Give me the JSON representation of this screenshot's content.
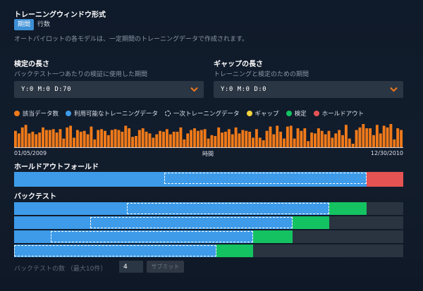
{
  "training_window": {
    "title": "トレーニングウィンドウ形式",
    "tabs": [
      {
        "label": "期間",
        "active": true
      },
      {
        "label": "行数",
        "active": false
      }
    ],
    "description": "オートパイロットの各モデルは、一定期間のトレーニングデータで作成されます。"
  },
  "validation": {
    "title": "検定の長さ",
    "subtitle": "バックテスト一つあたりの検証に使用した期間",
    "value": "Y:0  M:0  D:70"
  },
  "gap": {
    "title": "ギャップの長さ",
    "subtitle": "トレーニングと検定のための期間",
    "value": "Y:0  M:0  D:0"
  },
  "legend": [
    {
      "label": "該当データ数",
      "color": "#f07a1a",
      "dashed": false
    },
    {
      "label": "利用可能なトレーニングデータ",
      "color": "#3d9be9",
      "dashed": false
    },
    {
      "label": "一次トレーニングデータ",
      "color": "transparent",
      "dashed": true
    },
    {
      "label": "ギャップ",
      "color": "#f5d43c",
      "dashed": false
    },
    {
      "label": "検定",
      "color": "#14c261",
      "dashed": false
    },
    {
      "label": "ホールドアウト",
      "color": "#e55353",
      "dashed": false
    }
  ],
  "chart_data": {
    "type": "bar",
    "x_start_label": "01/05/2009",
    "x_end_label": "12/30/2010",
    "xlabel": "時間",
    "color": "#f07a1a",
    "values": [
      20,
      17,
      24,
      27,
      17,
      19,
      16,
      18,
      24,
      21,
      21,
      22,
      18,
      22,
      11,
      24,
      26,
      12,
      21,
      19,
      20,
      16,
      25,
      10,
      21,
      22,
      20,
      15,
      21,
      22,
      21,
      19,
      26,
      23,
      13,
      14,
      21,
      23,
      19,
      17,
      12,
      16,
      20,
      19,
      22,
      16,
      19,
      19,
      24,
      10,
      17,
      21,
      23,
      20,
      21,
      22,
      11,
      15,
      14,
      24,
      18,
      19,
      22,
      16,
      24,
      17,
      21,
      20,
      19,
      12,
      22,
      12,
      9,
      20,
      25,
      16,
      26,
      19,
      11,
      25,
      26,
      11,
      23,
      20,
      23,
      8,
      18,
      17,
      23,
      20,
      16,
      20,
      12,
      17,
      21,
      15,
      27,
      11,
      5,
      21,
      24,
      28,
      23,
      23,
      15,
      27,
      17,
      26,
      24,
      28,
      10,
      23,
      21
    ]
  },
  "holdout": {
    "title": "ホールドアウトフォールド",
    "training_fraction": 0.385,
    "primary_start": 0.385,
    "primary_end": 0.905,
    "holdout_fraction": 0.095
  },
  "backtests": {
    "title": "バックテスト",
    "rows": [
      {
        "training_end": 0.81,
        "primary_start": 0.29,
        "validation_end": 0.905
      },
      {
        "training_end": 0.715,
        "primary_start": 0.195,
        "validation_end": 0.81
      },
      {
        "training_end": 0.615,
        "primary_start": 0.095,
        "validation_end": 0.715
      },
      {
        "training_end": 0.52,
        "primary_start": 0.0,
        "validation_end": 0.615
      }
    ],
    "count_label": "バックテストの数 （最大10件）",
    "count_value": "4",
    "submit_label": "サブミット"
  },
  "colors": {
    "training": "#3d9be9",
    "validation": "#14c261",
    "holdout": "#e55353",
    "empty": "#2a3440",
    "accent": "#f07a1a"
  }
}
